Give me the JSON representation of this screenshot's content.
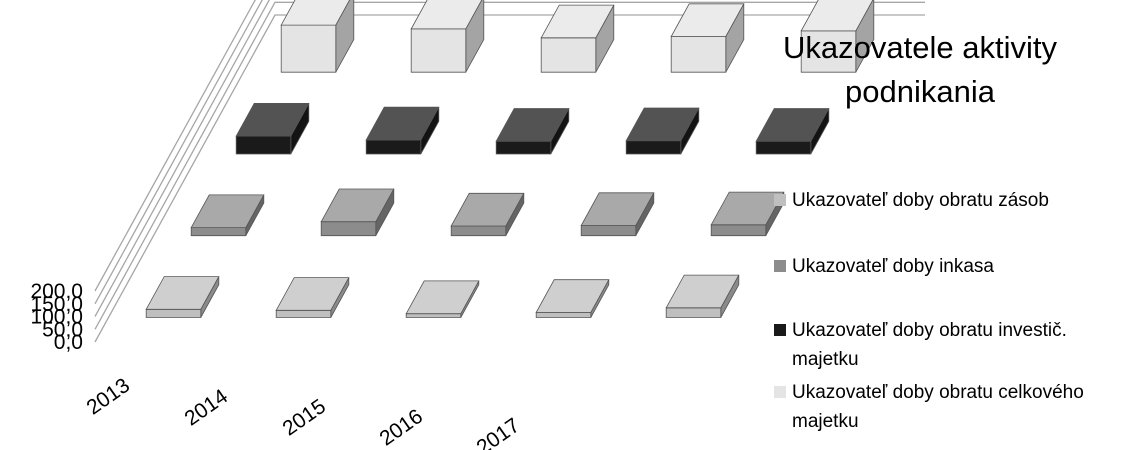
{
  "chart_data": {
    "type": "bar",
    "three_d": true,
    "title_lines": [
      "Ukazovatele aktivity",
      "podnikania"
    ],
    "categories": [
      "2013",
      "2014",
      "2015",
      "2016",
      "2017"
    ],
    "y_ticks": [
      "0,0",
      "50,0",
      "100,0",
      "150,0",
      "200,0"
    ],
    "ylim": [
      0,
      200
    ],
    "grid": true,
    "legend_position": "right",
    "series": [
      {
        "name": "Ukazovateľ doby obratu zásob",
        "values": [
          32,
          28,
          15,
          20,
          38
        ],
        "color": "#bfbfbf"
      },
      {
        "name": "Ukazovateľ  doby inkasa",
        "values": [
          32,
          55,
          38,
          40,
          43
        ],
        "color": "#8c8c8c"
      },
      {
        "name": "Ukazovateľ doby obratu investič. majetku",
        "values": [
          70,
          55,
          50,
          52,
          50
        ],
        "color": "#1a1a1a"
      },
      {
        "name": "Ukazovateľ doby obratu celkového majetku",
        "values": [
          185,
          170,
          135,
          140,
          162
        ],
        "color": "#e4e4e4"
      }
    ],
    "legend_lines": [
      [
        "Ukazovateľ doby obratu zásob"
      ],
      [
        "Ukazovateľ  doby inkasa"
      ],
      [
        "Ukazovateľ doby obratu investič.",
        "majetku"
      ],
      [
        "Ukazovateľ doby obratu celkového",
        "majetku"
      ]
    ]
  }
}
